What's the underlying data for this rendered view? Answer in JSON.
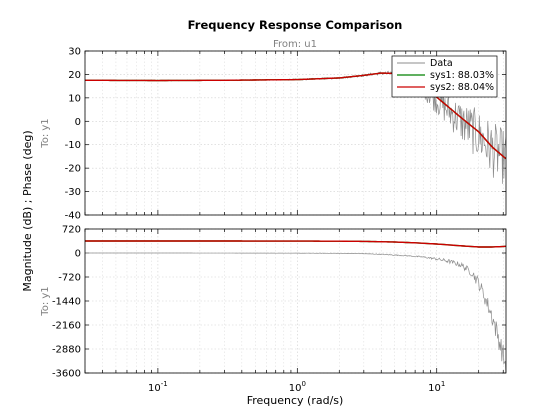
{
  "colors": {
    "data": "#8c8c8c",
    "sys1": "#008000",
    "sys2": "#cc0000",
    "grid": "#d0d0d0",
    "axis": "#000000",
    "subtitle": "#808080"
  },
  "figure": {
    "title": "Frequency Response Comparison",
    "from_label": "From: u1",
    "ylabel": "Magnitude (dB) ; Phase (deg)",
    "xlabel": "Frequency  (rad/s)",
    "to_label_top": "To: y1",
    "to_label_bottom": "To: y1"
  },
  "chart_data": {
    "type": "line",
    "title": "Frequency Response Comparison",
    "subtitle": "From: u1",
    "xlabel": "Frequency  (rad/s)",
    "ylabel": "Magnitude (dB) ; Phase (deg)",
    "xscale": "log",
    "xlim": [
      0.03,
      31.4
    ],
    "grid": true,
    "legend_position": "top-right",
    "x_tick_values": [
      0.1,
      1,
      10
    ],
    "x_tick_labels": [
      {
        "base": "10",
        "exp": "-1"
      },
      {
        "base": "10",
        "exp": "0"
      },
      {
        "base": "10",
        "exp": "1"
      }
    ],
    "legend": [
      {
        "label": "Data",
        "color": "#8c8c8c"
      },
      {
        "label": "sys1: 88.03%",
        "color": "#008000"
      },
      {
        "label": "sys2: 88.04%",
        "color": "#cc0000"
      }
    ],
    "panels": [
      {
        "name": "magnitude",
        "ylabel_right": "To: y1",
        "ylim": [
          -40,
          30
        ],
        "yticks": [
          30,
          20,
          10,
          0,
          -10,
          -20,
          -30,
          -40
        ],
        "series": [
          {
            "name": "Data",
            "kind": "noisy",
            "x": [
              0.03,
              0.1,
              0.3,
              1,
              2,
              3,
              4,
              5,
              6,
              8,
              10,
              15,
              20,
              25,
              31.4
            ],
            "y": [
              17.5,
              17.4,
              17.5,
              17.8,
              18.5,
              19.6,
              20.6,
              20.3,
              18.5,
              14,
              9,
              0,
              -6,
              -12,
              -16
            ],
            "noise": [
              0.2,
              0.2,
              0.2,
              0.3,
              0.4,
              0.5,
              0.7,
              1.2,
              2.5,
              4,
              6,
              9,
              11,
              12,
              12
            ]
          },
          {
            "name": "sys1: 88.03%",
            "x": [
              0.03,
              0.1,
              0.3,
              1,
              2,
              3,
              4,
              5,
              6,
              8,
              10,
              15,
              20,
              25,
              31.4
            ],
            "y": [
              17.5,
              17.4,
              17.5,
              17.8,
              18.5,
              19.6,
              20.6,
              20.4,
              19,
              15.5,
              10.3,
              1.5,
              -4.5,
              -11,
              -16
            ]
          },
          {
            "name": "sys2: 88.04%",
            "x": [
              0.03,
              0.1,
              0.3,
              1,
              2,
              3,
              4,
              5,
              6,
              8,
              10,
              15,
              20,
              25,
              31.4
            ],
            "y": [
              17.5,
              17.4,
              17.5,
              17.8,
              18.5,
              19.6,
              20.6,
              20.4,
              19,
              15.5,
              10.3,
              1.5,
              -4.5,
              -11,
              -16
            ]
          }
        ]
      },
      {
        "name": "phase",
        "ylabel_right": "To: y1",
        "ylim": [
          -3600,
          720
        ],
        "yticks": [
          720,
          0,
          -720,
          -1440,
          -2160,
          -2880,
          -3600
        ],
        "series": [
          {
            "name": "Data",
            "kind": "noisy",
            "x": [
              0.03,
              0.1,
              0.3,
              1,
              2,
              3,
              4,
              6,
              8,
              10,
              12,
              15,
              18,
              20,
              22,
              25,
              28,
              31.4
            ],
            "y": [
              0,
              0,
              -2,
              -5,
              -10,
              -20,
              -40,
              -80,
              -120,
              -180,
              -240,
              -360,
              -600,
              -900,
              -1300,
              -1900,
              -2600,
              -3400
            ],
            "noise": [
              0,
              0,
              0,
              2,
              5,
              5,
              10,
              15,
              20,
              40,
              60,
              80,
              120,
              180,
              220,
              280,
              320,
              360
            ]
          },
          {
            "name": "sys1: 88.03%",
            "x": [
              0.03,
              0.3,
              1,
              2,
              3,
              5,
              7,
              10,
              15,
              20,
              25,
              31.4
            ],
            "y": [
              360,
              360,
              358,
              354,
              348,
              330,
              305,
              270,
              215,
              180,
              180,
              200
            ]
          },
          {
            "name": "sys2: 88.04%",
            "x": [
              0.03,
              0.3,
              1,
              2,
              3,
              5,
              7,
              10,
              15,
              20,
              25,
              31.4
            ],
            "y": [
              360,
              360,
              358,
              354,
              348,
              330,
              305,
              270,
              215,
              180,
              180,
              200
            ]
          }
        ]
      }
    ]
  }
}
